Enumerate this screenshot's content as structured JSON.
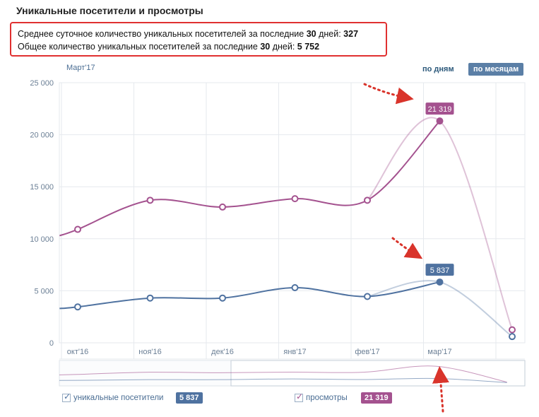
{
  "header": {
    "title": "Уникальные посетители и просмотры",
    "summary_line1_prefix": "Среднее суточное количество уникальных посетителей за последние ",
    "summary_line1_days": "30",
    "summary_line1_mid": " дней: ",
    "summary_line1_value": "327",
    "summary_line2_prefix": "Общее количество уникальных посетителей за последние ",
    "summary_line2_days": "30",
    "summary_line2_mid": " дней: ",
    "summary_line2_value": "5 752"
  },
  "controls": {
    "period_label": "Март'17",
    "by_days": "по дням",
    "by_months": "по месяцам"
  },
  "legend": {
    "visitors_label": "уникальные посетители",
    "visitors_value": "5 837",
    "views_label": "просмотры",
    "views_value": "21 319"
  },
  "colors": {
    "views": "#a4528f",
    "visitors": "#4f72a0",
    "annotation": "#d9342b"
  },
  "chart_data": {
    "type": "line",
    "categories": [
      "окт'16",
      "ноя'16",
      "дек'16",
      "янв'17",
      "фев'17",
      "мар'17"
    ],
    "y_ticks": [
      "0",
      "5 000",
      "10 000",
      "15 000",
      "20 000",
      "25 000"
    ],
    "ylim": [
      0,
      25000
    ],
    "grid": true,
    "series": [
      {
        "name": "просмотры",
        "color": "#a4528f",
        "x": [
          -0.25,
          0,
          1,
          2,
          3,
          4,
          5,
          6
        ],
        "values": [
          10300,
          10900,
          13700,
          13050,
          13850,
          13700,
          21319,
          1250
        ],
        "label_value": "21 319"
      },
      {
        "name": "уникальные посетители",
        "color": "#4f72a0",
        "x": [
          -0.25,
          0,
          1,
          2,
          3,
          4,
          5,
          6
        ],
        "values": [
          3300,
          3450,
          4300,
          4300,
          5300,
          4450,
          5837,
          600
        ],
        "label_value": "5 837"
      }
    ]
  }
}
